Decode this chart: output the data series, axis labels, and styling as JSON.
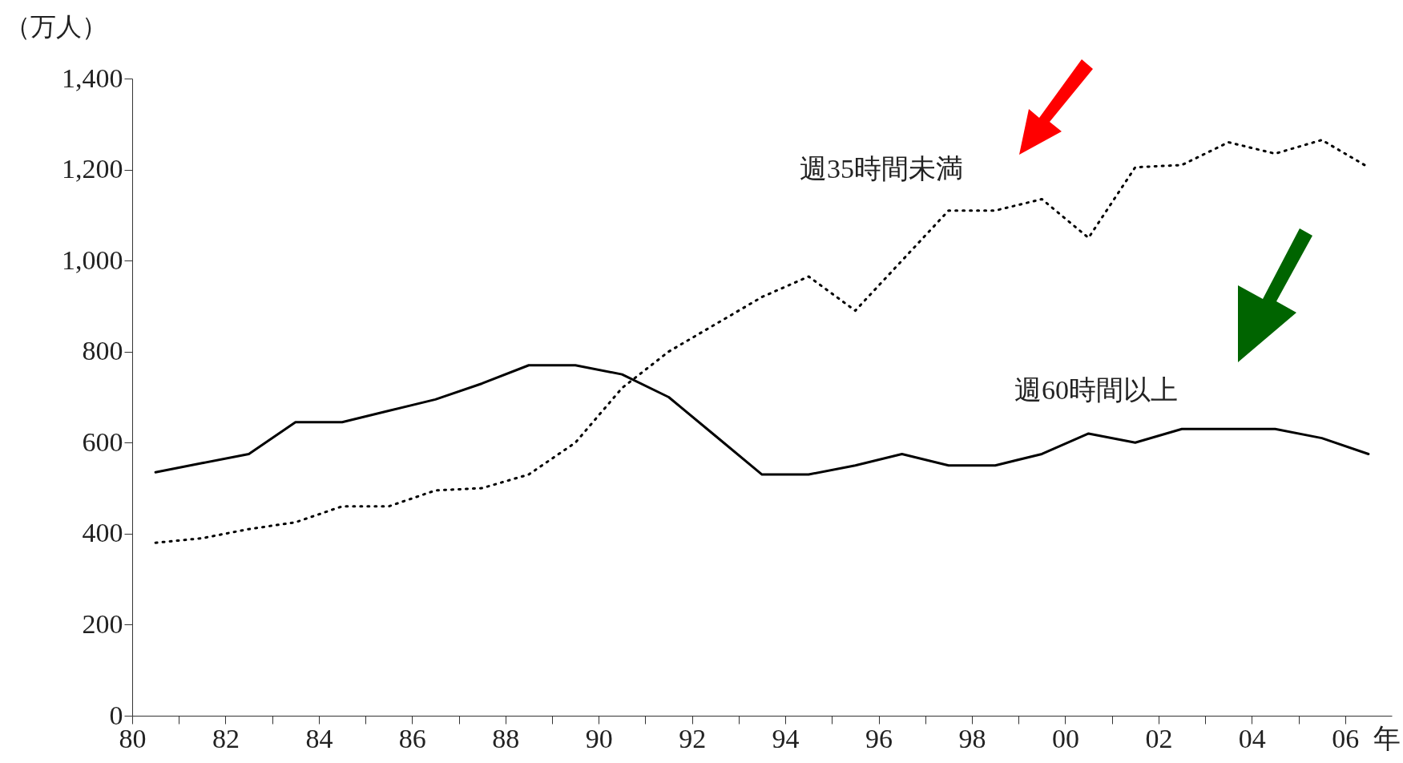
{
  "chart_data": {
    "type": "line",
    "ylabel": "（万人）",
    "x": [
      1980.5,
      1981.5,
      1982.5,
      1983.5,
      1984.5,
      1985.5,
      1986.5,
      1987.5,
      1988.5,
      1989.5,
      1990.5,
      1991.5,
      1992.5,
      1993.5,
      1994.5,
      1995.5,
      1996.5,
      1997.5,
      1998.5,
      1999.5,
      2000.5,
      2001.5,
      2002.5,
      2003.5,
      2004.5,
      2005.5,
      2006.5
    ],
    "series": [
      {
        "name": "週35時間未満",
        "color": "#000000",
        "line_style": "dotted",
        "values": [
          380,
          390,
          410,
          425,
          460,
          460,
          495,
          500,
          530,
          600,
          720,
          800,
          860,
          920,
          965,
          890,
          1000,
          1110,
          1110,
          1135,
          1050,
          1205,
          1210,
          1260,
          1235,
          1265,
          1205
        ]
      },
      {
        "name": "週60時間以上",
        "color": "#000000",
        "line_style": "solid",
        "values": [
          535,
          555,
          575,
          645,
          645,
          670,
          695,
          730,
          770,
          770,
          750,
          700,
          615,
          530,
          530,
          550,
          575,
          550,
          550,
          575,
          620,
          600,
          630,
          630,
          630,
          610,
          575
        ]
      }
    ],
    "xlim": [
      1980,
      2007
    ],
    "xticks": [
      {
        "value": 1980,
        "label": "80"
      },
      {
        "value": 1981,
        "label": null
      },
      {
        "value": 1982,
        "label": "82"
      },
      {
        "value": 1983,
        "label": null
      },
      {
        "value": 1984,
        "label": "84"
      },
      {
        "value": 1985,
        "label": null
      },
      {
        "value": 1986,
        "label": "86"
      },
      {
        "value": 1987,
        "label": null
      },
      {
        "value": 1988,
        "label": "88"
      },
      {
        "value": 1989,
        "label": null
      },
      {
        "value": 1990,
        "label": "90"
      },
      {
        "value": 1991,
        "label": null
      },
      {
        "value": 1992,
        "label": "92"
      },
      {
        "value": 1993,
        "label": null
      },
      {
        "value": 1994,
        "label": "94"
      },
      {
        "value": 1995,
        "label": null
      },
      {
        "value": 1996,
        "label": "96"
      },
      {
        "value": 1997,
        "label": null
      },
      {
        "value": 1998,
        "label": "98"
      },
      {
        "value": 1999,
        "label": null
      },
      {
        "value": 2000,
        "label": "00"
      },
      {
        "value": 2001,
        "label": null
      },
      {
        "value": 2002,
        "label": "02"
      },
      {
        "value": 2003,
        "label": null
      },
      {
        "value": 2004,
        "label": "04"
      },
      {
        "value": 2005,
        "label": null
      },
      {
        "value": 2006,
        "label": "06"
      }
    ],
    "xlabel": "年",
    "ylim": [
      0,
      1400
    ],
    "yticks": [
      {
        "value": 0,
        "label": "0"
      },
      {
        "value": 200,
        "label": "200"
      },
      {
        "value": 400,
        "label": "400"
      },
      {
        "value": 600,
        "label": "600"
      },
      {
        "value": 800,
        "label": "800"
      },
      {
        "value": 1000,
        "label": "1,000"
      },
      {
        "value": 1200,
        "label": "1,200"
      },
      {
        "value": 1400,
        "label": "1,400"
      }
    ],
    "grid": false,
    "marker": "none"
  }
}
